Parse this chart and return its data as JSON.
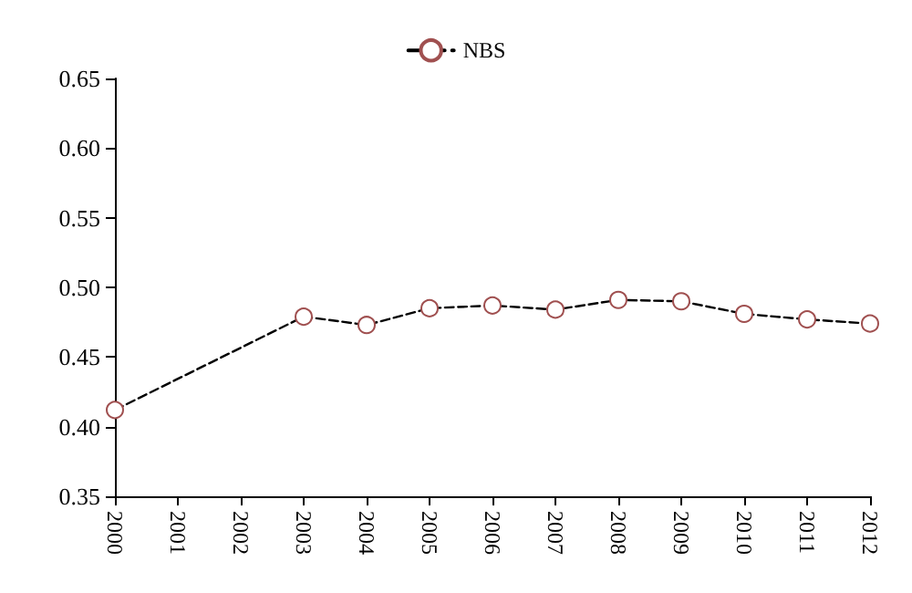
{
  "chart_data": {
    "type": "line",
    "categories": [
      "2000",
      "2001",
      "2002",
      "2003",
      "2004",
      "2005",
      "2006",
      "2007",
      "2008",
      "2009",
      "2010",
      "2011",
      "2012"
    ],
    "series": [
      {
        "name": "NBS",
        "color": "#000000",
        "values": [
          0.412,
          null,
          null,
          0.479,
          0.473,
          0.485,
          0.487,
          0.484,
          0.491,
          0.49,
          0.481,
          0.477,
          0.474
        ]
      }
    ],
    "ylim": [
      0.35,
      0.65
    ],
    "yticks": [
      0.35,
      {
        "value": 0.4,
        "label": "0.40"
      },
      0.45,
      {
        "value": 0.5,
        "label": "0.50"
      },
      0.55,
      {
        "value": 0.6,
        "label": "0.60"
      },
      0.65
    ],
    "grid": false,
    "legend": "top",
    "marker": "circle",
    "line_style": "dashed"
  }
}
